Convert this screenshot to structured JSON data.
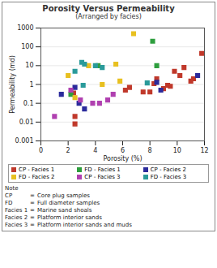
{
  "chart_data": {
    "type": "scatter",
    "title": "Porosity Versus Permeability",
    "subtitle": "(Arranged by facies)",
    "x_label": "Porosity (%)",
    "y_label": "Permeability (md)",
    "xlim": [
      0,
      12
    ],
    "xticks": [
      0,
      2,
      4,
      6,
      8,
      10,
      12
    ],
    "ylim": [
      0.001,
      1000
    ],
    "yticks": [
      0.001,
      0.01,
      0.1,
      1,
      10,
      100,
      1000
    ],
    "log": "y",
    "grid": true,
    "legend": "bottom",
    "marker": "square",
    "series": [
      {
        "name": "CP - Facies 1",
        "color": "#c0392b",
        "x": [
          2.5,
          2.5,
          2.4,
          6.2,
          6.5,
          7.5,
          8.0,
          8.3,
          8.5,
          9.0,
          9.3,
          9.5,
          9.8,
          10.2,
          10.5,
          11.0,
          11.2,
          11.8
        ],
        "values": [
          0.008,
          0.02,
          0.35,
          0.5,
          0.7,
          0.4,
          0.4,
          1.1,
          2,
          0.6,
          0.9,
          0.8,
          5,
          3,
          8,
          1.5,
          2,
          45
        ]
      },
      {
        "name": "FD - Facies 1",
        "color": "#2e9e3e",
        "x": [
          8.2,
          8.5,
          4.2,
          2.2
        ],
        "values": [
          200,
          10,
          10,
          0.3
        ]
      },
      {
        "name": "CP - Facies 2",
        "color": "#2b2b9c",
        "x": [
          2.5,
          3.2,
          2.8,
          1.5,
          8.5,
          8.8,
          11.5
        ],
        "values": [
          0.7,
          0.05,
          0.1,
          0.3,
          1.3,
          0.5,
          3
        ]
      },
      {
        "name": "FD - Facies 2",
        "color": "#e8c020",
        "x": [
          6.8,
          2.0,
          3.5,
          4.5,
          5.5,
          5.8,
          2.5
        ],
        "values": [
          500,
          3,
          10,
          1,
          12,
          1.5,
          0.2
        ]
      },
      {
        "name": "CP - Facies 3",
        "color": "#b040b0",
        "x": [
          1.0,
          2.2,
          2.9,
          3.8,
          4.3,
          4.9,
          5.3
        ],
        "values": [
          0.02,
          0.5,
          0.15,
          0.1,
          0.1,
          0.15,
          0.3
        ]
      },
      {
        "name": "FD - Facies 3",
        "color": "#2a9a9a",
        "x": [
          3.0,
          3.2,
          4.0,
          4.5,
          2.5,
          7.8,
          3.1
        ],
        "values": [
          15,
          12,
          10,
          8,
          5,
          1.2,
          0.9
        ]
      }
    ],
    "annotations": [
      "Note",
      "CP = Core plug samples",
      "FD = Full diameter samples",
      "Facies 1 = Marine sand shoals",
      "Facies 2 = Platform interior sands",
      "Facies 3 = Platform interior sands and muds"
    ]
  }
}
